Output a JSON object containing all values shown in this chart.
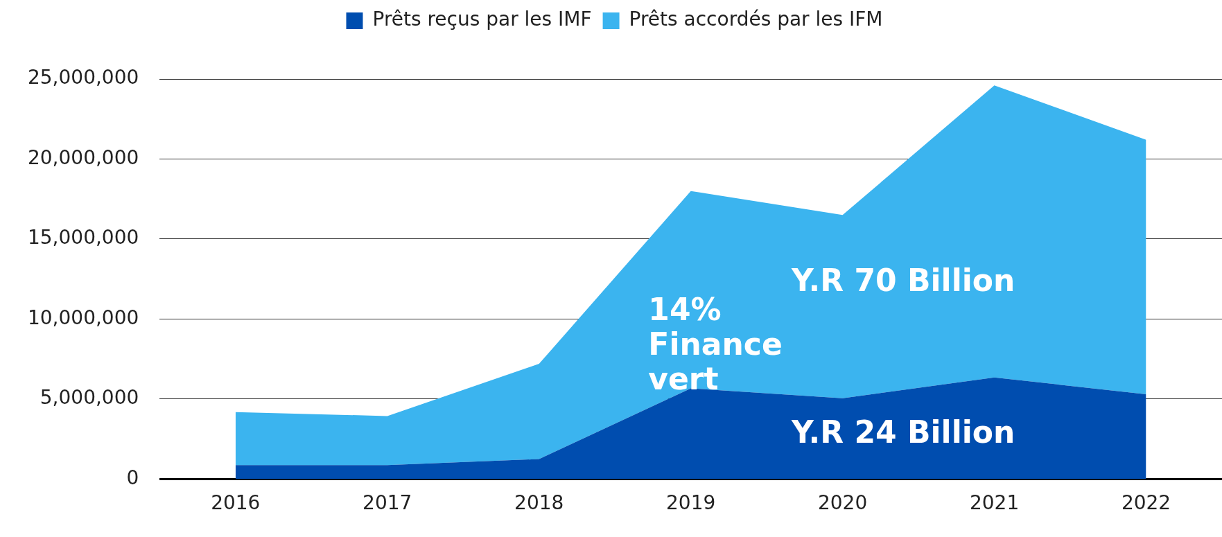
{
  "chart_data": {
    "type": "area",
    "stacked": true,
    "categories": [
      "2016",
      "2017",
      "2018",
      "2019",
      "2020",
      "2021",
      "2022"
    ],
    "series": [
      {
        "name": "Prêts reçus par les IMF",
        "color": "#004daf",
        "values": [
          870000,
          870000,
          1250000,
          5670000,
          5050000,
          6350000,
          5300000
        ]
      },
      {
        "name": "Prêts accordés par les IFM",
        "color": "#3bb4ef",
        "values": [
          3310000,
          3070000,
          5950000,
          12330000,
          11450000,
          18250000,
          15900000
        ]
      }
    ],
    "ylim": [
      0,
      25000000
    ],
    "yticks": [
      {
        "value": 0,
        "label": "0"
      },
      {
        "value": 5000000,
        "label": "5,000,000"
      },
      {
        "value": 10000000,
        "label": "10,000,000"
      },
      {
        "value": 15000000,
        "label": "15,000,000"
      },
      {
        "value": 20000000,
        "label": "20,000,000"
      },
      {
        "value": 25000000,
        "label": "25,000,000"
      }
    ],
    "grid": "y",
    "legend": "top",
    "annotations": [
      "14%\nFinance\nvert",
      "Y.R 70 Billion",
      "Y.R 24 Billion"
    ]
  }
}
